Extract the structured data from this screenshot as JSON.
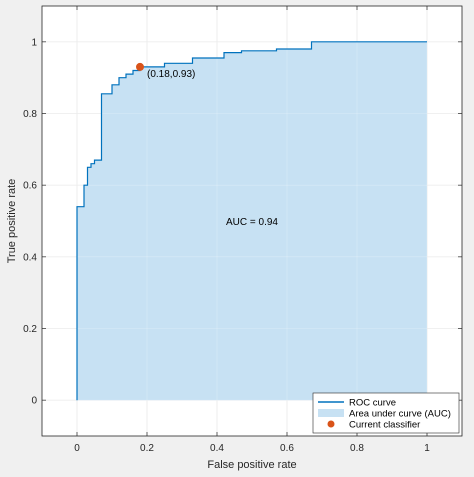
{
  "chart_data": {
    "type": "line",
    "xlabel": "False positive rate",
    "ylabel": "True positive rate",
    "xlim": [
      -0.1,
      1.1
    ],
    "ylim": [
      -0.1,
      1.1
    ],
    "xticks": [
      0,
      0.2,
      0.4,
      0.6,
      0.8,
      1
    ],
    "yticks": [
      0,
      0.2,
      0.4,
      0.6,
      0.8,
      1
    ],
    "xtick_labels": [
      "0",
      "0.2",
      "0.4",
      "0.6",
      "0.8",
      "1"
    ],
    "ytick_labels": [
      "0",
      "0.2",
      "0.4",
      "0.6",
      "0.8",
      "1"
    ],
    "grid": true,
    "legend_position": "bottom-right",
    "series": [
      {
        "name": "ROC curve",
        "color": "#0072BD",
        "x": [
          0,
          0,
          0.02,
          0.02,
          0.03,
          0.03,
          0.04,
          0.04,
          0.05,
          0.05,
          0.07,
          0.07,
          0.1,
          0.1,
          0.12,
          0.12,
          0.14,
          0.14,
          0.16,
          0.16,
          0.18,
          0.18,
          0.25,
          0.25,
          0.33,
          0.33,
          0.42,
          0.42,
          0.47,
          0.47,
          0.57,
          0.57,
          0.67,
          0.67,
          1.0
        ],
        "y": [
          0,
          0.54,
          0.54,
          0.6,
          0.6,
          0.65,
          0.65,
          0.66,
          0.66,
          0.67,
          0.67,
          0.855,
          0.855,
          0.88,
          0.88,
          0.9,
          0.9,
          0.91,
          0.91,
          0.92,
          0.92,
          0.93,
          0.93,
          0.94,
          0.94,
          0.955,
          0.955,
          0.97,
          0.97,
          0.975,
          0.975,
          0.98,
          0.98,
          1.0,
          1.0
        ]
      }
    ],
    "area": {
      "name": "Area under curve (AUC)",
      "color": "#C7E1F3"
    },
    "point": {
      "name": "Current classifier",
      "x": 0.18,
      "y": 0.93,
      "label": "(0.18,0.93)",
      "color": "#D95319"
    },
    "annotation": {
      "text": "AUC = 0.94",
      "x": 0.5,
      "y": 0.5
    }
  }
}
